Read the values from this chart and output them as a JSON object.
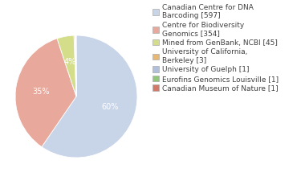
{
  "labels": [
    "Canadian Centre for DNA\nBarcoding [597]",
    "Centre for Biodiversity\nGenomics [354]",
    "Mined from GenBank, NCBI [45]",
    "University of California,\nBerkeley [3]",
    "University of Guelph [1]",
    "Eurofins Genomics Louisville [1]",
    "Canadian Museum of Nature [1]"
  ],
  "values": [
    597,
    354,
    45,
    3,
    1,
    1,
    1
  ],
  "colors": [
    "#c8d4e8",
    "#e8a89c",
    "#d4de8a",
    "#e8b870",
    "#b0c0dc",
    "#90c878",
    "#d47868"
  ],
  "background_color": "#ffffff",
  "text_color": "#404040",
  "font_size": 7.0,
  "legend_font_size": 6.5
}
